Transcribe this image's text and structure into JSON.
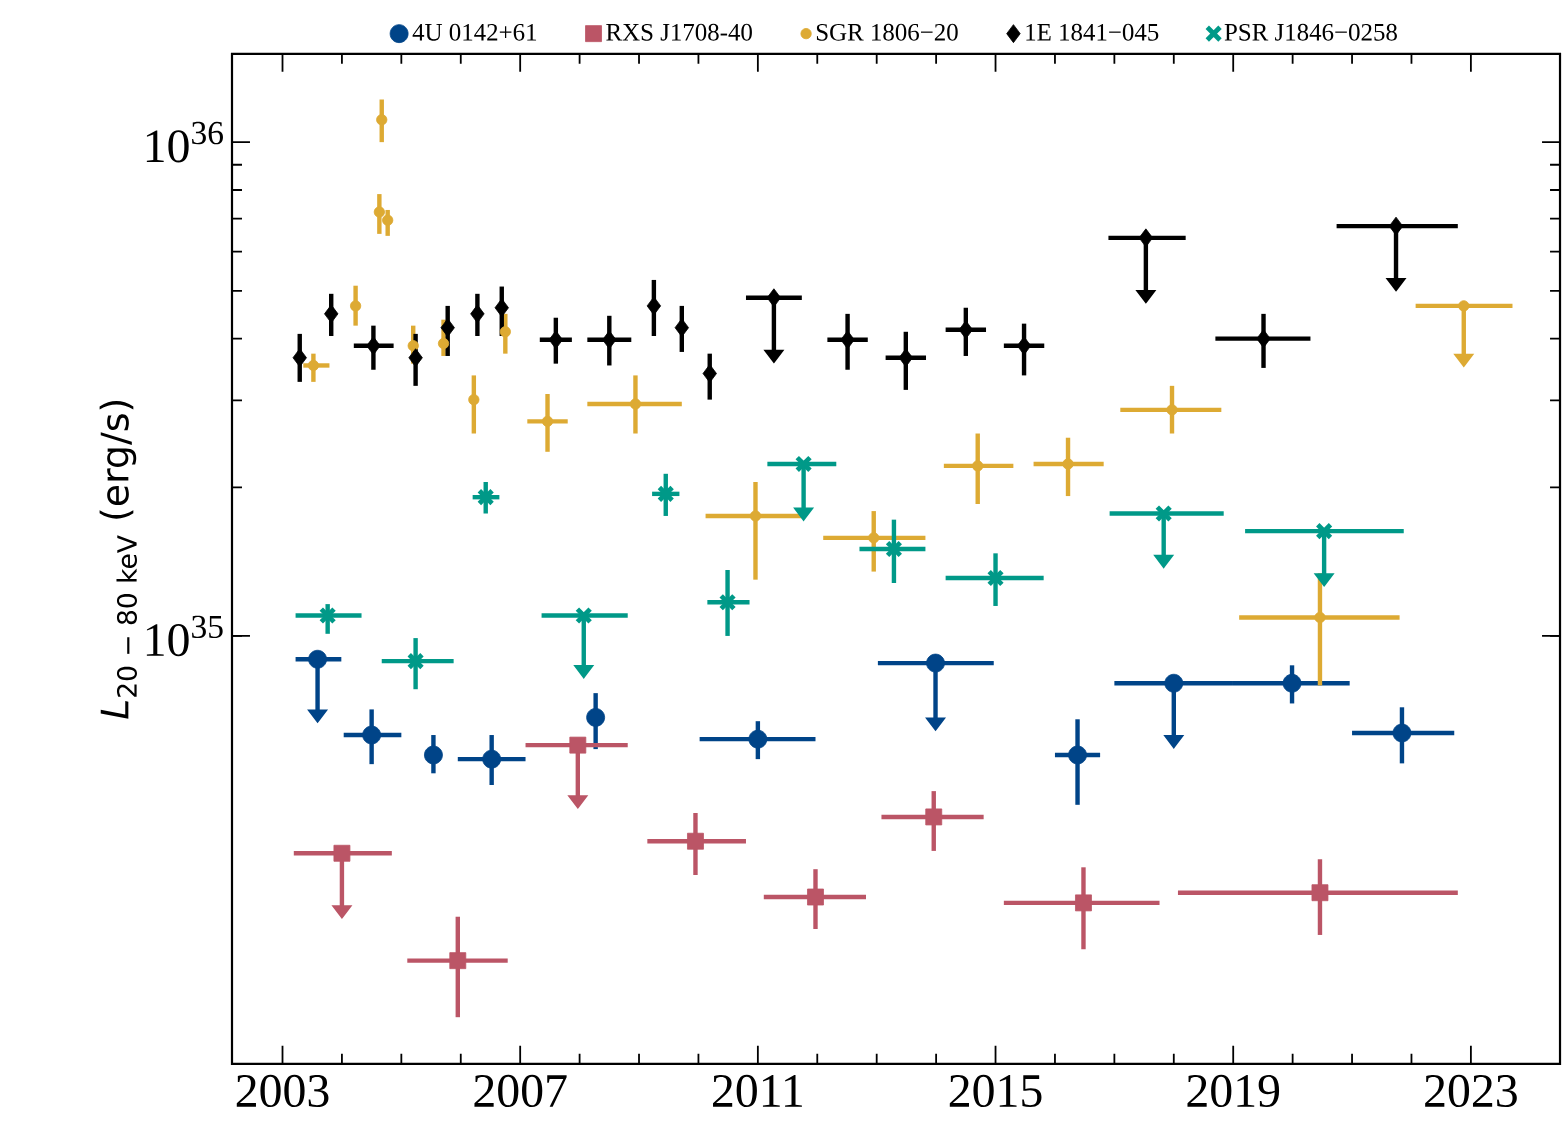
{
  "chart_data": {
    "type": "scatter",
    "ylabel": "*L*$_{20 − 80 keV}$ (erg/s)",
    "xlim": [
      2002.15,
      2024.5
    ],
    "ylim": [
      1.36e+34,
      1.51e+36
    ],
    "log": "y",
    "xticks": [
      2003,
      2007,
      2011,
      2015,
      2019,
      2023
    ],
    "yticks": [
      {
        "value": 1e+35,
        "label": "10$^{35}$"
      },
      {
        "value": 1e+36,
        "label": "10$^{36}$"
      }
    ],
    "legend": "top",
    "series": [
      {
        "name": "4U 0142+61",
        "color": "#004488",
        "marker": "circle",
        "x": [
          2003.59,
          2004.5,
          2005.54,
          2006.52,
          2008.27,
          2011.0,
          2013.99,
          2016.38,
          2018.0,
          2019.99,
          2021.84
        ],
        "values": [
          8.97e+34,
          6.3e+34,
          5.74e+34,
          5.63e+34,
          6.84e+34,
          6.18e+34,
          8.81e+34,
          5.74e+34,
          8.02e+34,
          8.02e+34,
          6.36e+34
        ],
        "errors": [
          [
            7.1e+34,
            8.97e+34
          ],
          [
            5.5e+34,
            7.1e+34
          ],
          [
            5.27e+34,
            6.3e+34
          ],
          [
            4.99e+34,
            6.3e+34
          ],
          [
            5.9e+34,
            7.66e+34
          ],
          [
            5.63e+34,
            6.72e+34
          ],
          [
            6.84e+34,
            8.81e+34
          ],
          [
            4.55e+34,
            6.78e+34
          ],
          [
            6.3e+34,
            8.02e+34
          ],
          [
            7.3e+34,
            8.72e+34
          ],
          [
            5.52e+34,
            7.17e+34
          ]
        ],
        "xerrors": [
          [
            2003.22,
            2003.99
          ],
          [
            2004.03,
            2005.0
          ],
          null,
          [
            2005.95,
            2007.09
          ],
          null,
          [
            2010.02,
            2011.97
          ],
          [
            2013.02,
            2014.97
          ],
          [
            2016.0,
            2016.76
          ],
          [
            2017.0,
            2018.98
          ],
          [
            2018.98,
            2020.96
          ],
          [
            2021.0,
            2022.72
          ]
        ]
      },
      {
        "name": "RXS J1708-40",
        "color": "#bb5566",
        "marker": "square",
        "x": [
          2004.0,
          2005.95,
          2007.97,
          2009.95,
          2011.97,
          2013.96,
          2016.48,
          2020.46
        ],
        "values": [
          3.63e+34,
          2.2e+34,
          6.01e+34,
          3.84e+34,
          2.96e+34,
          4.3e+34,
          2.88e+34,
          3.02e+34
        ],
        "errors": [
          [
            2.85e+34,
            3.63e+34
          ],
          [
            1.69e+34,
            2.7e+34
          ],
          [
            4.76e+34,
            6.01e+34
          ],
          [
            3.28e+34,
            4.38e+34
          ],
          [
            2.55e+34,
            3.37e+34
          ],
          [
            3.67e+34,
            4.85e+34
          ],
          [
            2.32e+34,
            3.4e+34
          ],
          [
            2.48e+34,
            3.53e+34
          ]
        ],
        "xerrors": [
          [
            2003.19,
            2004.84
          ],
          [
            2005.1,
            2006.79
          ],
          [
            2007.09,
            2008.81
          ],
          [
            2009.14,
            2010.8
          ],
          [
            2011.1,
            2012.82
          ],
          [
            2013.08,
            2014.8
          ],
          [
            2015.14,
            2017.76
          ],
          [
            2018.07,
            2022.78
          ]
        ]
      },
      {
        "name": "SGR 1806−20",
        "color": "#ddaa33",
        "marker": "circle",
        "x": [
          2003.52,
          2004.23,
          2004.63,
          2004.67,
          2004.77,
          2005.2,
          2005.71,
          2006.22,
          2006.75,
          2007.46,
          2008.94,
          2010.96,
          2012.95,
          2014.7,
          2016.22,
          2017.97,
          2020.46,
          2022.88
        ],
        "values": [
          3.53e+35,
          4.66e+35,
          7.22e+35,
          1.11e+36,
          6.95e+35,
          3.87e+35,
          3.91e+35,
          3.01e+35,
          4.13e+35,
          2.72e+35,
          2.95e+35,
          1.75e+35,
          1.58e+35,
          2.21e+35,
          2.23e+35,
          2.87e+35,
          1.09e+35,
          4.66e+35
        ],
        "errors": [
          [
            3.27e+35,
            3.73e+35
          ],
          [
            4.25e+35,
            5.12e+35
          ],
          [
            6.52e+35,
            7.85e+35
          ],
          [
            1e+36,
            1.22e+36
          ],
          [
            6.46e+35,
            7.29e+35
          ],
          [
            3.56e+35,
            4.25e+35
          ],
          [
            3.69e+35,
            4.37e+35
          ],
          [
            2.57e+35,
            3.37e+35
          ],
          [
            3.73e+35,
            4.49e+35
          ],
          [
            2.36e+35,
            3.09e+35
          ],
          [
            2.57e+35,
            3.37e+35
          ],
          [
            1.3e+35,
            2.05e+35
          ],
          [
            1.35e+35,
            1.79e+35
          ],
          [
            1.85e+35,
            2.57e+35
          ],
          [
            1.92e+35,
            2.52e+35
          ],
          [
            2.57e+35,
            3.21e+35
          ],
          [
            7.94e+34,
            1.34e+35
          ],
          [
            3.73e+35,
            4.66e+35
          ]
        ],
        "xerrors": [
          [
            2003.35,
            2003.79
          ],
          null,
          null,
          null,
          null,
          null,
          null,
          null,
          null,
          [
            2007.12,
            2007.8
          ],
          [
            2008.13,
            2009.72
          ],
          [
            2010.12,
            2011.8
          ],
          [
            2012.1,
            2013.82
          ],
          [
            2014.13,
            2015.3
          ],
          [
            2015.64,
            2016.82
          ],
          [
            2017.1,
            2018.8
          ],
          [
            2019.1,
            2021.8
          ],
          [
            2022.07,
            2023.7
          ]
        ]
      },
      {
        "name": "1E 1841−045",
        "color": "#000000",
        "marker": "diamond",
        "x": [
          2003.29,
          2003.82,
          2004.53,
          2005.24,
          2005.78,
          2006.28,
          2006.69,
          2007.6,
          2008.5,
          2009.25,
          2009.72,
          2010.19,
          2011.27,
          2012.51,
          2013.49,
          2014.5,
          2015.48,
          2017.53,
          2019.51,
          2021.74
        ],
        "values": [
          3.66e+35,
          4.49e+35,
          3.87e+35,
          3.66e+35,
          4.21e+35,
          4.49e+35,
          4.62e+35,
          3.98e+35,
          3.98e+35,
          4.66e+35,
          4.21e+35,
          3.4e+35,
          4.84e+35,
          3.98e+35,
          3.66e+35,
          4.17e+35,
          3.87e+35,
          6.4e+35,
          4e+35,
          6.76e+35
        ],
        "errors": [
          [
            3.27e+35,
            4.09e+35
          ],
          [
            4.05e+35,
            4.93e+35
          ],
          [
            3.46e+35,
            4.25e+35
          ],
          [
            3.21e+35,
            4.09e+35
          ],
          [
            3.69e+35,
            4.66e+35
          ],
          [
            4.05e+35,
            4.93e+35
          ],
          [
            4.05e+35,
            5.1e+35
          ],
          [
            3.56e+35,
            4.41e+35
          ],
          [
            3.53e+35,
            4.45e+35
          ],
          [
            4.05e+35,
            5.26e+35
          ],
          [
            3.76e+35,
            4.66e+35
          ],
          [
            3.01e+35,
            3.73e+35
          ],
          [
            3.8e+35,
            4.84e+35
          ],
          [
            3.46e+35,
            4.49e+35
          ],
          [
            3.15e+35,
            4.13e+35
          ],
          [
            3.69e+35,
            4.62e+35
          ],
          [
            3.37e+35,
            4.29e+35
          ],
          [
            5.02e+35,
            6.4e+35
          ],
          [
            3.49e+35,
            4.49e+35
          ],
          [
            5.31e+35,
            6.76e+35
          ]
        ],
        "xerrors": [
          null,
          null,
          [
            2004.2,
            2004.87
          ],
          null,
          null,
          null,
          null,
          [
            2007.33,
            2007.87
          ],
          [
            2008.13,
            2008.87
          ],
          null,
          null,
          null,
          [
            2010.8,
            2011.74
          ],
          [
            2012.17,
            2012.85
          ],
          [
            2013.15,
            2013.83
          ],
          [
            2014.16,
            2014.84
          ],
          [
            2015.14,
            2015.82
          ],
          [
            2016.9,
            2018.2
          ],
          [
            2018.7,
            2020.3
          ],
          [
            2020.74,
            2022.78
          ]
        ]
      },
      {
        "name": "PSR J1846−0258",
        "color": "#009988",
        "marker": "cross",
        "x": [
          2003.76,
          2005.24,
          2006.42,
          2008.07,
          2009.45,
          2010.49,
          2011.77,
          2013.29,
          2015.0,
          2017.83,
          2020.53
        ],
        "values": [
          1.1e+35,
          8.89e+34,
          1.91e+35,
          1.1e+35,
          1.94e+35,
          1.17e+35,
          2.23e+35,
          1.5e+35,
          1.31e+35,
          1.77e+35,
          1.63e+35
        ],
        "errors": [
          [
            1.01e+35,
            1.16e+35
          ],
          [
            7.8e+34,
            9.9e+34
          ],
          [
            1.77e+35,
            2.05e+35
          ],
          [
            8.73e+34,
            1.1e+35
          ],
          [
            1.75e+35,
            2.13e+35
          ],
          [
            1e+35,
            1.36e+35
          ],
          [
            1.82e+35,
            2.23e+35
          ],
          [
            1.28e+35,
            1.72e+35
          ],
          [
            1.15e+35,
            1.47e+35
          ],
          [
            1.46e+35,
            1.77e+35
          ],
          [
            1.34e+35,
            1.63e+35
          ]
        ],
        "xerrors": [
          [
            2003.22,
            2004.33
          ],
          [
            2004.67,
            2005.88
          ],
          [
            2006.2,
            2006.65
          ],
          [
            2007.36,
            2008.81
          ],
          [
            2009.22,
            2009.68
          ],
          [
            2010.15,
            2010.86
          ],
          [
            2011.16,
            2012.32
          ],
          [
            2012.71,
            2013.82
          ],
          [
            2014.16,
            2015.81
          ],
          [
            2016.92,
            2018.84
          ],
          [
            2019.2,
            2021.87
          ]
        ]
      }
    ]
  }
}
